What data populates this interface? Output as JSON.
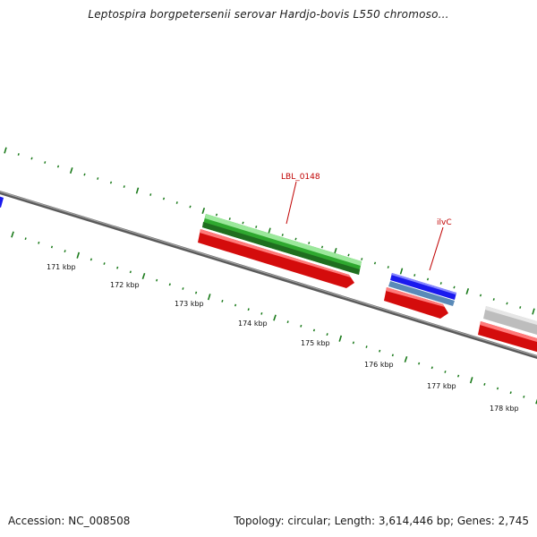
{
  "title": "Leptospira borgpetersenii serovar Hardjo-bovis L550 chromoso...",
  "footer": {
    "accession": "Accession: NC_008508",
    "summary": "Topology: circular; Length: 3,614,446 bp; Genes: 2,745"
  },
  "axis_ticks": [
    "171 kbp",
    "172 kbp",
    "173 kbp",
    "174 kbp",
    "175 kbp",
    "176 kbp",
    "177 kbp",
    "178 kbp"
  ],
  "gene_labels": {
    "lbl_0148": "LBL_0148",
    "ilvc": "ilvC"
  },
  "colors": {
    "backbone": "#808080",
    "tick_green": "#1a7a1a",
    "gene_green": "#3cc83c",
    "gene_green_dark": "#1f7a1f",
    "gene_red": "#ee1111",
    "gene_blue": "#1a1aee",
    "gene_steel": "#5a8ab8",
    "gene_gray": "#c8c8c8",
    "label_red": "#c00000"
  }
}
